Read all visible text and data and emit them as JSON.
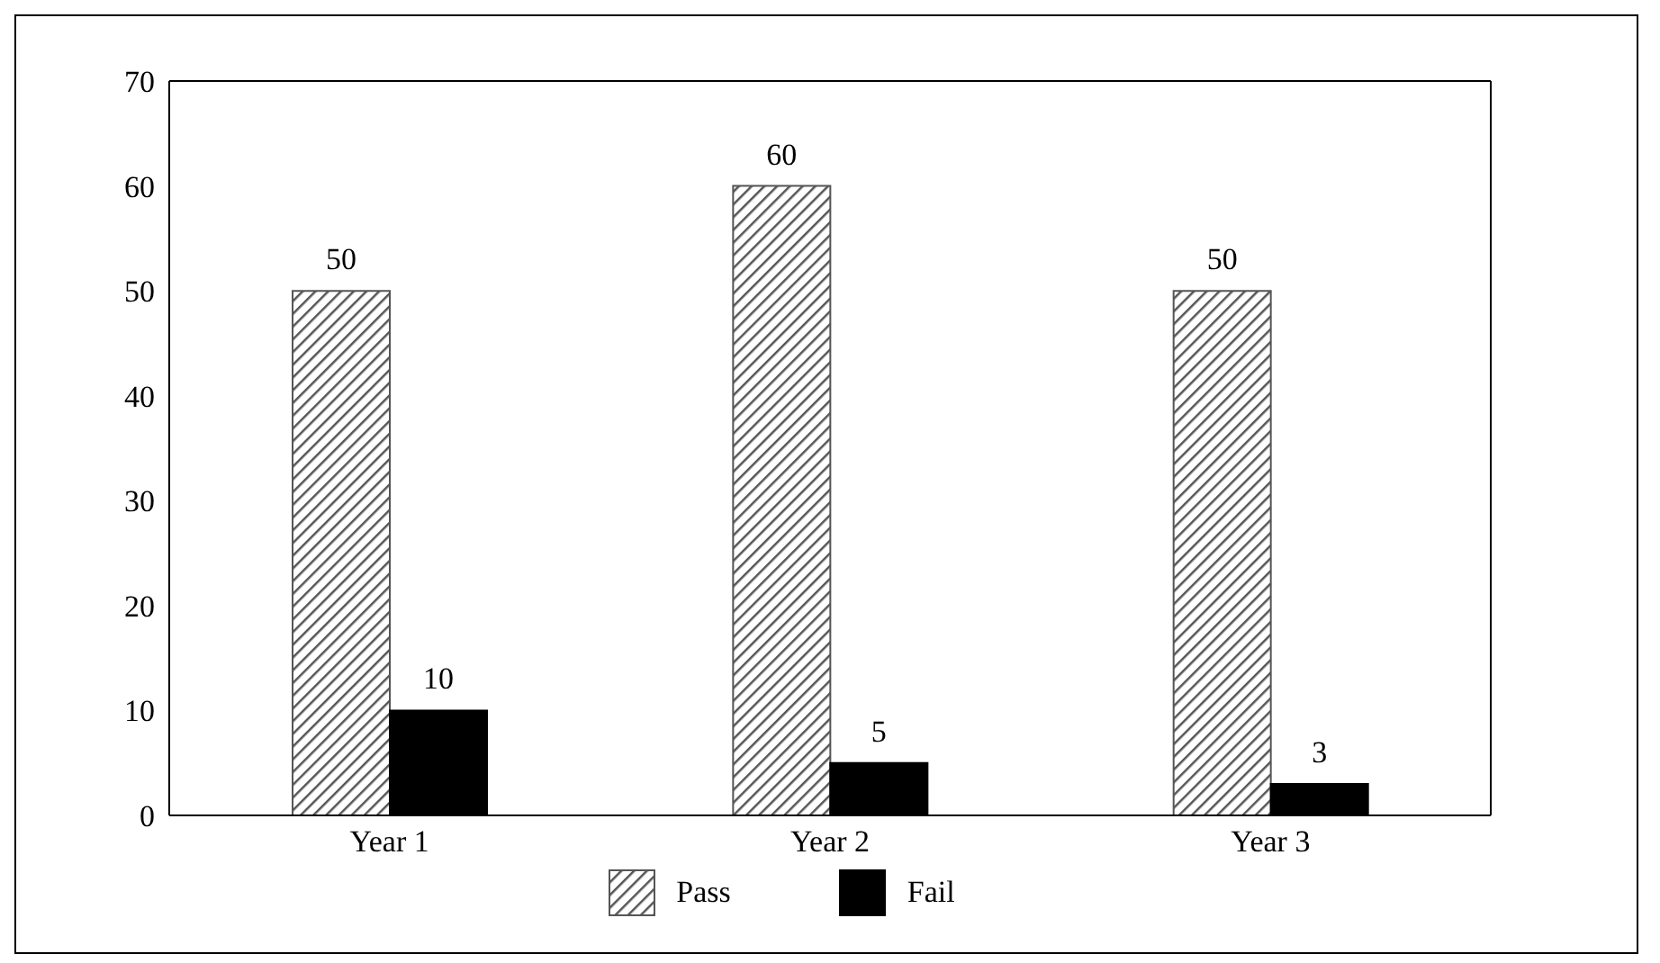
{
  "chart_data": {
    "type": "bar",
    "categories": [
      "Year 1",
      "Year 2",
      "Year 3"
    ],
    "series": [
      {
        "name": "Pass",
        "color": "#555555",
        "values": [
          50,
          60,
          50
        ]
      },
      {
        "name": "Fail",
        "color": "#000000",
        "values": [
          10,
          5,
          3
        ]
      }
    ],
    "ylim": [
      0,
      70
    ],
    "yticks": [
      0,
      10,
      20,
      30,
      40,
      50,
      60,
      70
    ],
    "grid": false,
    "legend": "bottom",
    "data_labels": true
  }
}
